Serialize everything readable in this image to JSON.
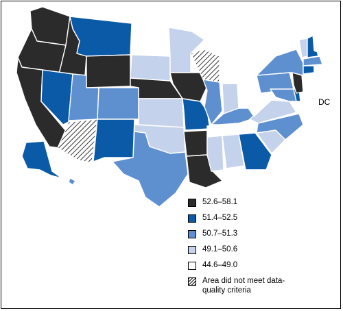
{
  "legend": {
    "c1": {
      "label": "52.6–58.1",
      "color": "#2b2b2b"
    },
    "c2": {
      "label": "51.4–52.5",
      "color": "#0b5aa8"
    },
    "c3": {
      "label": "50.7–51.3",
      "color": "#5e8fcf"
    },
    "c4": {
      "label": "49.1–50.6",
      "color": "#c5d2ec"
    },
    "c5": {
      "label": "44.6–49.0",
      "color": "#ffffff"
    },
    "na": {
      "label": "Area did not meet data-quality criteria"
    }
  },
  "dc_label": "DC",
  "states": {
    "WA": "c1",
    "OR": "c1",
    "CA": "c1",
    "ID": "c1",
    "WY": "c1",
    "NE": "c1",
    "IA": "c1",
    "AR": "c1",
    "LA": "c1",
    "NJ": "c1",
    "MT": "c2",
    "NV": "c2",
    "NM": "c2",
    "MO": "c2",
    "GA": "c2",
    "NH": "c2",
    "CT": "c2",
    "DE": "c2",
    "AK": "c2",
    "UT": "c3",
    "CO": "c3",
    "TX": "c3",
    "IL": "c3",
    "KY": "c3",
    "NY": "c3",
    "PA": "c3",
    "NC": "c3",
    "MA": "c3",
    "MD": "c3",
    "HI": "c3",
    "SD": "c4",
    "KS": "c4",
    "OK": "c4",
    "MN": "c4",
    "IN": "c4",
    "MS": "c4",
    "AL": "c4",
    "SC": "c4",
    "VT": "c4",
    "VA": "c4",
    "ND": "c5",
    "MI": "c5",
    "OH": "c5",
    "WV": "c5",
    "TN": "c5",
    "FL": "c5",
    "ME": "c5",
    "RI": "c5",
    "DC": "c5",
    "AZ": "na",
    "WI": "na"
  }
}
